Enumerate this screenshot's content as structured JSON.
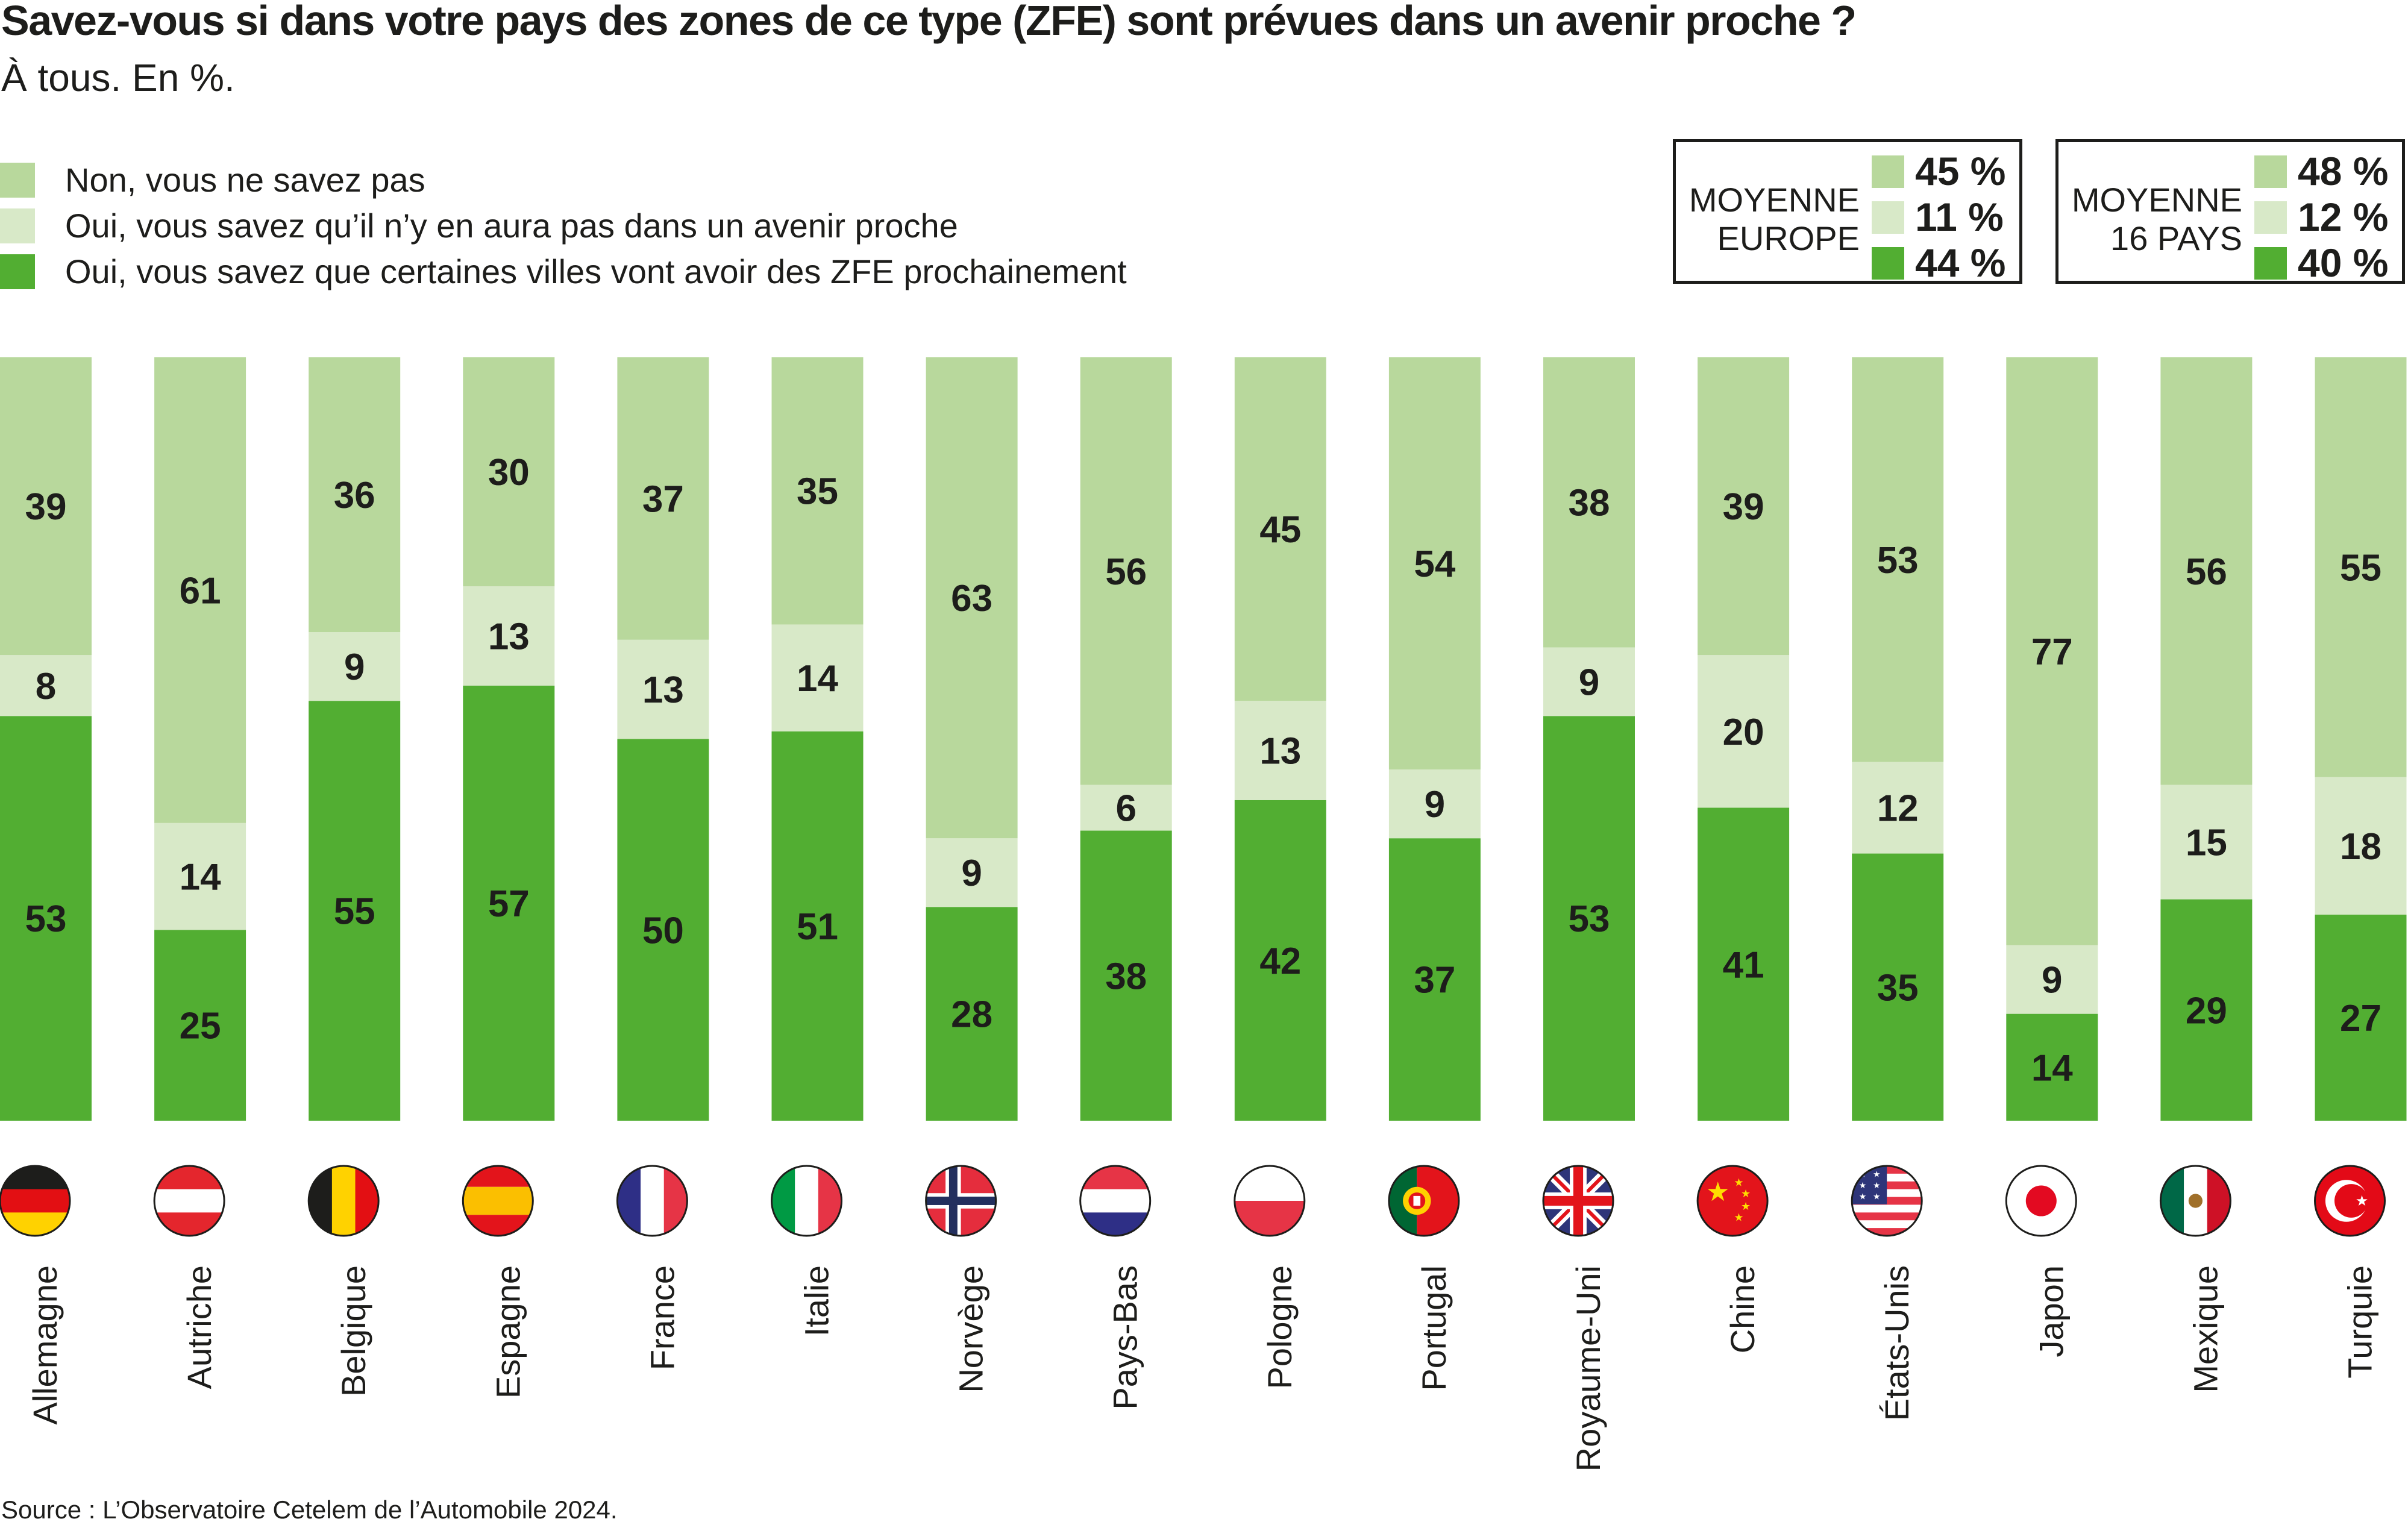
{
  "title": "Savez-vous si dans votre pays des zones de ce type (ZFE) sont prévues dans un avenir proche ?",
  "subtitle": "À tous. En %.",
  "source": "Source : L’Observatoire Cetelem de l’Automobile 2024.",
  "colors": {
    "non_savez_pas": "#b8d89c",
    "oui_pas_zfe": "#d8e9c8",
    "oui_zfe": "#52ae32",
    "text": "#1d1d1b"
  },
  "legend": [
    {
      "key": "non_savez_pas",
      "label": "Non, vous ne savez pas"
    },
    {
      "key": "oui_pas_zfe",
      "label": "Oui, vous savez qu’il n’y en aura pas dans un avenir proche"
    },
    {
      "key": "oui_zfe",
      "label": "Oui, vous savez que certaines villes vont avoir des ZFE prochainement"
    }
  ],
  "averages": [
    {
      "title_line1": "MOYENNE",
      "title_line2": "EUROPE",
      "values": [
        "45 %",
        "11 %",
        "44 %"
      ]
    },
    {
      "title_line1": "MOYENNE",
      "title_line2": "16 PAYS",
      "values": [
        "48 %",
        "12 %",
        "40 %"
      ]
    }
  ],
  "chart_data": {
    "type": "bar",
    "stacked": true,
    "orientation": "vertical",
    "title": "Savez-vous si dans votre pays des zones de ce type (ZFE) sont prévues dans un avenir proche ?",
    "subtitle": "À tous. En %.",
    "xlabel": "",
    "ylabel": "",
    "ylim": [
      0,
      100
    ],
    "grid": false,
    "legend_position": "top-left",
    "categories": [
      "Allemagne",
      "Autriche",
      "Belgique",
      "Espagne",
      "France",
      "Italie",
      "Norvège",
      "Pays-Bas",
      "Pologne",
      "Portugal",
      "Royaume-Uni",
      "Chine",
      "États-Unis",
      "Japon",
      "Mexique",
      "Turquie"
    ],
    "flags": [
      "flag-germany",
      "flag-austria",
      "flag-belgium",
      "flag-spain",
      "flag-france",
      "flag-italy",
      "flag-norway",
      "flag-netherlands",
      "flag-poland",
      "flag-portugal",
      "flag-united-kingdom",
      "flag-china",
      "flag-united-states",
      "flag-japan",
      "flag-mexico",
      "flag-turkey"
    ],
    "series": [
      {
        "name": "Oui, vous savez que certaines villes vont avoir des ZFE prochainement",
        "key": "oui_zfe",
        "values": [
          53,
          25,
          55,
          57,
          50,
          51,
          28,
          38,
          42,
          37,
          53,
          41,
          35,
          14,
          29,
          27
        ]
      },
      {
        "name": "Oui, vous savez qu’il n’y en aura pas dans un avenir proche",
        "key": "oui_pas_zfe",
        "values": [
          8,
          14,
          9,
          13,
          13,
          14,
          9,
          6,
          13,
          9,
          9,
          20,
          12,
          9,
          15,
          18
        ]
      },
      {
        "name": "Non, vous ne savez pas",
        "key": "non_savez_pas",
        "values": [
          39,
          61,
          36,
          30,
          37,
          35,
          63,
          56,
          45,
          54,
          38,
          39,
          53,
          77,
          56,
          55
        ]
      }
    ]
  }
}
